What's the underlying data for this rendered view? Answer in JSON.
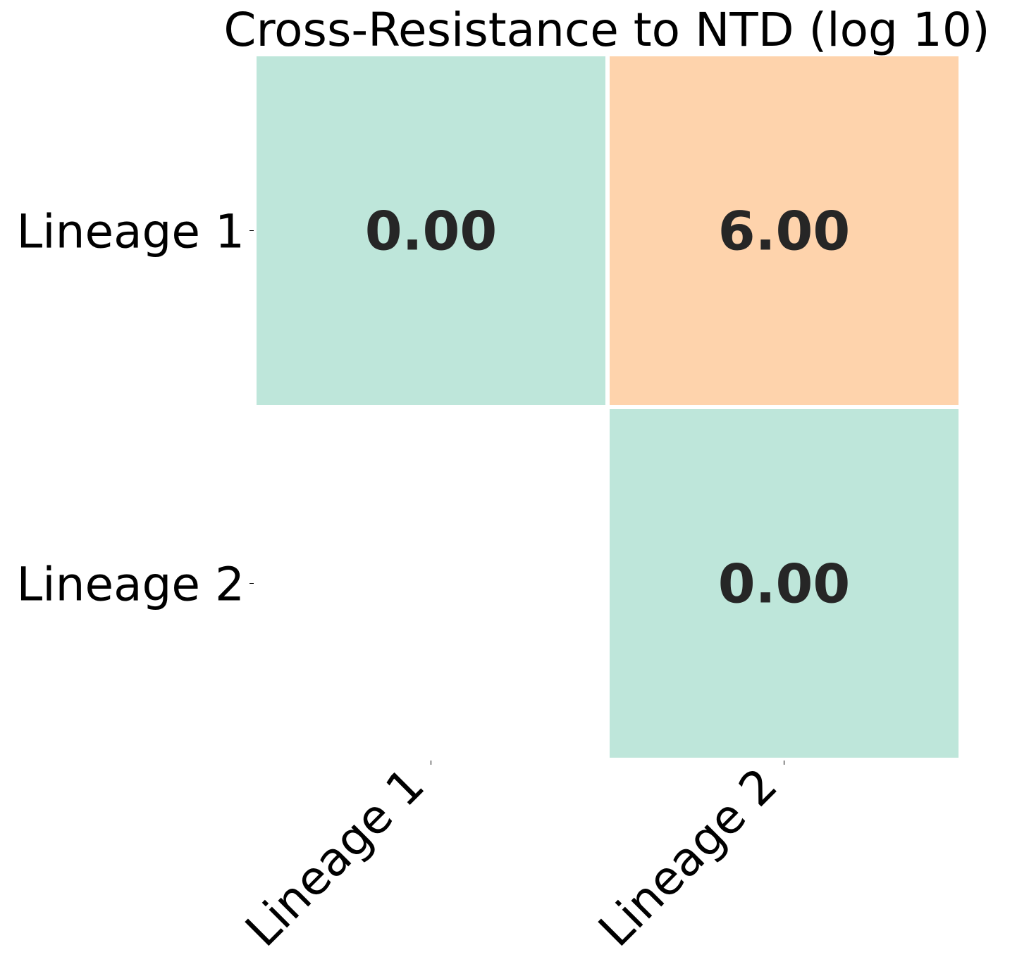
{
  "chart_data": {
    "type": "heatmap",
    "title": "Cross-Resistance to NTD (log 10)",
    "rows": [
      "Lineage 1",
      "Lineage 2"
    ],
    "columns": [
      "Lineage 1",
      "Lineage 2"
    ],
    "values": [
      [
        0.0,
        6.0
      ],
      [
        null,
        0.0
      ]
    ],
    "value_format": "0.00",
    "grid": false,
    "legend": "none",
    "colors": {
      "low": "#bee6da",
      "high": "#fed3ac",
      "cell_text": "#262626",
      "masked": "#ffffff"
    }
  }
}
